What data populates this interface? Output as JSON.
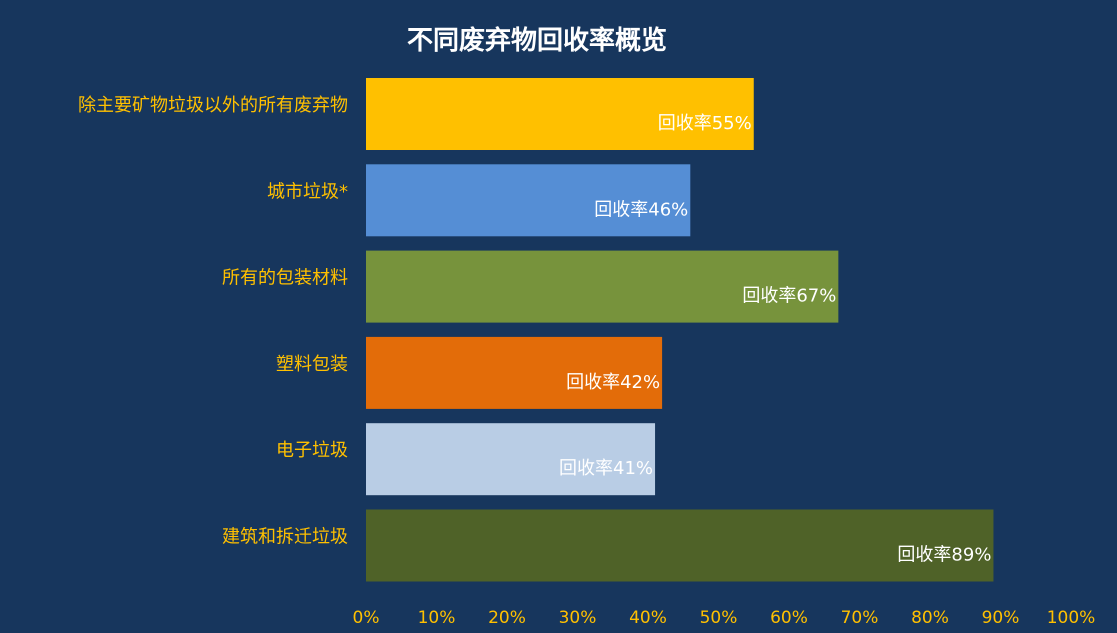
{
  "chart_data": {
    "type": "bar",
    "orientation": "horizontal",
    "title": "不同废弃物回收率概览",
    "categories": [
      "除主要矿物垃圾以外的所有废弃物",
      "城市垃圾*",
      "所有的包装材料",
      "塑料包装",
      "电子垃圾",
      "建筑和拆迁垃圾"
    ],
    "values": [
      55,
      46,
      67,
      42,
      41,
      89
    ],
    "data_labels": [
      "回收率55%",
      "回收率46%",
      "回收率67%",
      "回收率42%",
      "回收率41%",
      "回收率89%"
    ],
    "bar_colors": [
      "#ffc000",
      "#558ed5",
      "#77933c",
      "#e36c09",
      "#b9cde5",
      "#4f6228"
    ],
    "xlim": [
      0,
      100
    ],
    "x_ticks": [
      "0%",
      "10%",
      "20%",
      "30%",
      "40%",
      "50%",
      "60%",
      "70%",
      "80%",
      "90%",
      "100%"
    ],
    "grid": false,
    "background_color": "#17365d",
    "label_color": "#ffc000",
    "data_label_color": "#ffffff"
  }
}
